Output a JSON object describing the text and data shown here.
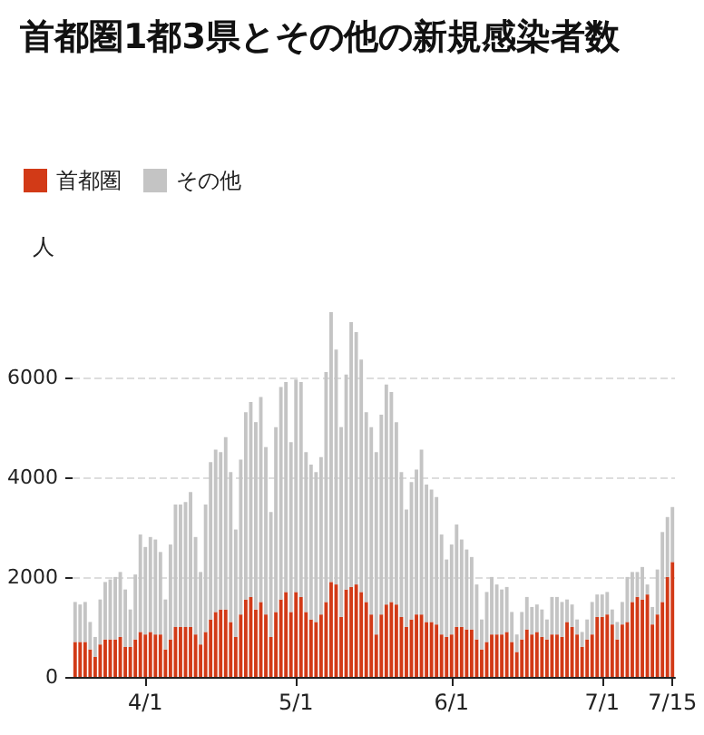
{
  "chart_data": {
    "type": "bar",
    "title": "首都圏1都3県とその他の新規感染者数",
    "ylabel": "人",
    "stacked": true,
    "legend": "top left",
    "grid": "y",
    "categories": [
      null,
      null,
      null,
      null,
      null,
      null,
      null,
      null,
      null,
      null,
      null,
      null,
      null,
      null,
      "4/1",
      null,
      null,
      null,
      null,
      null,
      null,
      null,
      null,
      null,
      null,
      null,
      null,
      null,
      null,
      null,
      null,
      null,
      null,
      null,
      null,
      null,
      null,
      null,
      null,
      null,
      null,
      null,
      null,
      null,
      "5/1",
      null,
      null,
      null,
      null,
      null,
      null,
      null,
      null,
      null,
      null,
      null,
      null,
      null,
      null,
      null,
      null,
      null,
      null,
      null,
      null,
      null,
      null,
      null,
      null,
      null,
      null,
      null,
      null,
      null,
      null,
      "6/1",
      null,
      null,
      null,
      null,
      null,
      null,
      null,
      null,
      null,
      null,
      null,
      null,
      null,
      null,
      null,
      null,
      null,
      null,
      null,
      null,
      null,
      null,
      null,
      null,
      null,
      null,
      null,
      null,
      null,
      "7/1",
      null,
      null,
      null,
      null,
      null,
      null,
      null,
      null,
      null,
      null,
      null,
      null,
      null,
      "7/15"
    ],
    "ylim": [
      0,
      7300
    ],
    "yticks": [
      0,
      2000,
      4000,
      6000
    ],
    "series": [
      {
        "name": "首都圏",
        "color": "#d23a17",
        "values": [
          700,
          700,
          700,
          550,
          400,
          650,
          750,
          750,
          750,
          800,
          600,
          600,
          750,
          900,
          850,
          900,
          850,
          850,
          550,
          750,
          1000,
          1000,
          1000,
          1000,
          850,
          650,
          900,
          1150,
          1300,
          1350,
          1350,
          1100,
          800,
          1250,
          1550,
          1600,
          1350,
          1500,
          1250,
          800,
          1300,
          1550,
          1700,
          1300,
          1700,
          1600,
          1300,
          1150,
          1100,
          1250,
          1500,
          1900,
          1850,
          1200,
          1750,
          1800,
          1850,
          1700,
          1500,
          1250,
          850,
          1250,
          1450,
          1500,
          1450,
          1200,
          1000,
          1150,
          1250,
          1250,
          1100,
          1100,
          1050,
          850,
          800,
          850,
          1000,
          1000,
          950,
          950,
          750,
          550,
          700,
          850,
          850,
          850,
          900,
          700,
          500,
          750,
          950,
          850,
          900,
          800,
          750,
          850,
          850,
          800,
          1100,
          1000,
          850,
          600,
          750,
          850,
          1200,
          1200,
          1250,
          1050,
          750,
          1050,
          1100,
          1500,
          1600,
          1550,
          1650,
          1050,
          1250,
          1500,
          2000,
          2300
        ]
      },
      {
        "name": "その他",
        "color": "#c4c4c4",
        "values": [
          800,
          750,
          800,
          550,
          400,
          900,
          1150,
          1200,
          1250,
          1300,
          1150,
          750,
          1300,
          1950,
          1750,
          1900,
          1900,
          1650,
          1000,
          1900,
          2450,
          2450,
          2500,
          2700,
          1950,
          1450,
          2550,
          3150,
          3250,
          3150,
          3450,
          3000,
          2150,
          3100,
          3750,
          3900,
          3750,
          4100,
          3350,
          2500,
          3700,
          4250,
          4200,
          3400,
          4250,
          4300,
          3200,
          3100,
          3000,
          3150,
          4600,
          5400,
          4700,
          3800,
          4300,
          5300,
          5050,
          4650,
          3800,
          3750,
          3650,
          4000,
          4400,
          4200,
          3650,
          2900,
          2350,
          2750,
          2900,
          3300,
          2750,
          2650,
          2550,
          2000,
          1550,
          1800,
          2050,
          1750,
          1600,
          1450,
          1100,
          600,
          1000,
          1150,
          1000,
          900,
          900,
          600,
          350,
          550,
          650,
          550,
          550,
          550,
          400,
          750,
          750,
          700,
          450,
          450,
          300,
          300,
          400,
          650,
          450,
          450,
          450,
          300,
          350,
          450,
          900,
          600,
          500,
          650,
          200,
          350,
          900,
          1400,
          1200,
          1100
        ]
      }
    ]
  }
}
